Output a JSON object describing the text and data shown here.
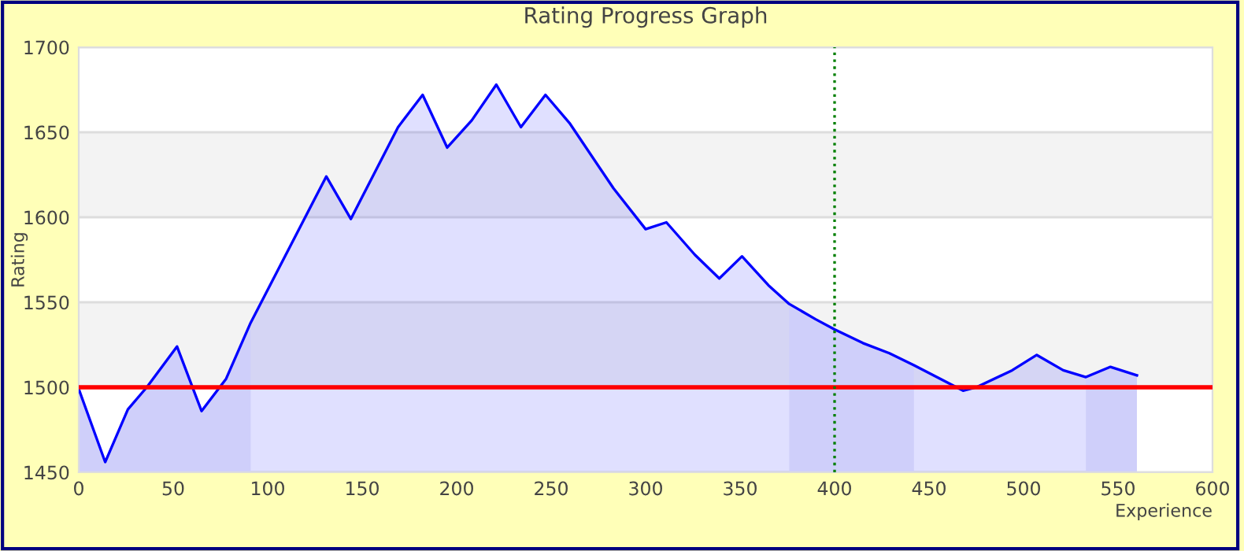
{
  "chart_data": {
    "type": "area",
    "title": "Rating Progress Graph",
    "xlabel": "Experience",
    "ylabel": "Rating",
    "x": [
      0,
      14,
      26,
      36,
      52,
      65,
      78,
      91,
      131,
      144,
      169,
      182,
      195,
      208,
      221,
      234,
      247,
      260,
      283,
      300,
      311,
      326,
      339,
      351,
      365,
      376,
      390,
      400,
      415,
      429,
      442,
      468,
      475,
      494,
      507,
      521,
      533,
      546,
      560
    ],
    "series": [
      {
        "color": "#0000ff",
        "values": [
          1499,
          1456,
          1487,
          1500,
          1524,
          1486,
          1505,
          1538,
          1624,
          1599,
          1653,
          1672,
          1641,
          1657,
          1678,
          1653,
          1672,
          1655,
          1617,
          1593,
          1597,
          1578,
          1564,
          1577,
          1560,
          1549,
          1540,
          1534,
          1526,
          1520,
          1513,
          1498,
          1500,
          1510,
          1519,
          1510,
          1506,
          1512,
          1507
        ]
      },
      {
        "type": "area",
        "color": "#cfcffa",
        "x": [
          0,
          14,
          26,
          36,
          52,
          65,
          78,
          91
        ],
        "values": [
          1499,
          1456,
          1487,
          1500,
          1524,
          1486,
          1505,
          1538
        ]
      },
      {
        "type": "area",
        "color": "#cfcffa",
        "x": [
          376,
          390,
          400,
          415,
          429,
          442
        ],
        "values": [
          1549,
          1540,
          1534,
          1526,
          1520,
          1513
        ]
      },
      {
        "type": "area",
        "color": "#cfcffa",
        "x": [
          533,
          546,
          560
        ],
        "values": [
          1506,
          1512,
          1507
        ]
      }
    ],
    "xlim": [
      0,
      600
    ],
    "ylim": [
      1450,
      1700
    ],
    "xticks": [
      0,
      50,
      100,
      150,
      200,
      250,
      300,
      350,
      400,
      450,
      500,
      550,
      600
    ],
    "yticks": [
      1450,
      1500,
      1550,
      1600,
      1650,
      1700
    ],
    "grid": "y",
    "ref_lines": [
      {
        "axis": "y",
        "value": 1500,
        "color": "#ff0000",
        "line_style": "solid"
      },
      {
        "axis": "x",
        "value": 400,
        "color": "#007f00",
        "line_style": "dotted"
      }
    ]
  }
}
